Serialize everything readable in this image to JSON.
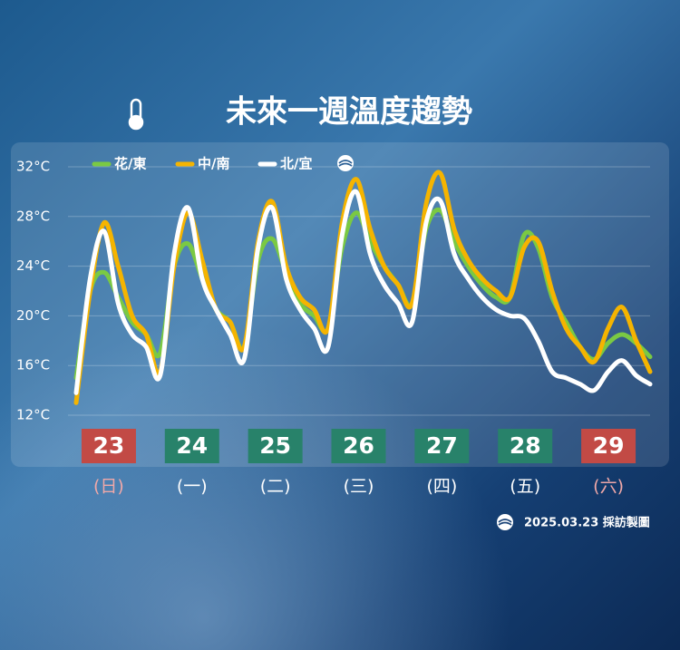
{
  "chart_data": {
    "type": "line",
    "title": "未來一週溫度趨勢",
    "source": "2025.03.23 採訪製圖",
    "ylim": [
      12,
      32
    ],
    "yticks": [
      {
        "value": 12,
        "label": "12°C"
      },
      {
        "value": 16,
        "label": "16°C"
      },
      {
        "value": 20,
        "label": "20°C"
      },
      {
        "value": 24,
        "label": "24°C"
      },
      {
        "value": 28,
        "label": "28°C"
      },
      {
        "value": 32,
        "label": "32°C"
      }
    ],
    "grid": true,
    "categories": [
      null,
      null,
      null,
      null,
      null,
      null,
      null,
      null,
      null,
      null,
      null,
      null,
      null,
      null,
      null,
      null,
      null,
      null,
      null,
      null,
      null,
      null,
      null,
      null,
      null,
      null,
      null,
      null,
      null,
      null,
      null,
      null,
      null,
      null,
      null,
      null,
      null,
      null,
      null,
      null,
      null,
      null
    ],
    "days": [
      {
        "date": "23",
        "weekday": "(日)",
        "color": "#c24a45",
        "label_color": "#f0a8a8"
      },
      {
        "date": "24",
        "weekday": "(一)",
        "color": "#28826a",
        "label_color": "#ffffff"
      },
      {
        "date": "25",
        "weekday": "(二)",
        "color": "#28826a",
        "label_color": "#ffffff"
      },
      {
        "date": "26",
        "weekday": "(三)",
        "color": "#28826a",
        "label_color": "#ffffff"
      },
      {
        "date": "27",
        "weekday": "(四)",
        "color": "#28826a",
        "label_color": "#ffffff"
      },
      {
        "date": "28",
        "weekday": "(五)",
        "color": "#28826a",
        "label_color": "#ffffff"
      },
      {
        "date": "29",
        "weekday": "(六)",
        "color": "#c24a45",
        "label_color": "#f0a8a8"
      }
    ],
    "series": [
      {
        "name": "花/東",
        "color": "#7ac943",
        "values": [
          15,
          22,
          23.5,
          21.5,
          19.5,
          18.5,
          17,
          24,
          25.8,
          23,
          20.5,
          19.5,
          17.5,
          24.5,
          26.2,
          23.5,
          21,
          20,
          19,
          25.5,
          28.3,
          26,
          24,
          22.5,
          21,
          27,
          28.5,
          26,
          24,
          22.5,
          21.5,
          21.5,
          26.5,
          25.5,
          21.5,
          19.5,
          17.5,
          16.5,
          17.8,
          18.5,
          17.8,
          16.7
        ]
      },
      {
        "name": "中/南",
        "color": "#f5b400",
        "values": [
          13,
          22,
          27.5,
          24,
          20,
          18.5,
          15.5,
          24,
          28.3,
          24.5,
          20.5,
          19.5,
          17.5,
          26,
          29.2,
          24,
          21.5,
          20.5,
          19,
          27.5,
          31,
          27,
          24,
          22.5,
          21,
          29,
          31.5,
          27,
          24.5,
          23,
          22,
          21.5,
          25.5,
          26,
          22,
          19,
          17.5,
          16.3,
          19,
          20.7,
          18,
          15.5
        ]
      },
      {
        "name": "北/宜",
        "color": "#ffffff",
        "values": [
          13.8,
          23,
          26.8,
          21,
          18.5,
          17.5,
          15.2,
          25,
          28.7,
          23,
          20.5,
          18.5,
          16.5,
          25.5,
          28.7,
          23,
          20.5,
          19,
          17.5,
          26.5,
          30,
          25,
          22.5,
          21,
          19.5,
          27.5,
          29.3,
          25,
          23,
          21.5,
          20.5,
          20,
          19.8,
          18,
          15.5,
          15,
          14.5,
          14,
          15.5,
          16.4,
          15.2,
          14.5
        ]
      }
    ]
  }
}
